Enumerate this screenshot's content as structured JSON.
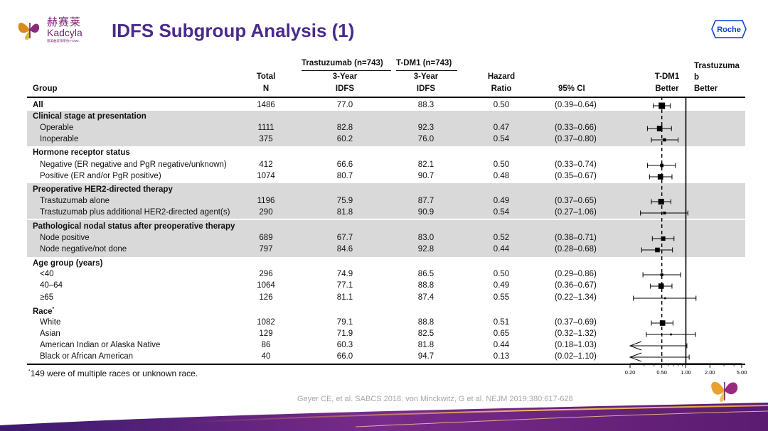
{
  "brand": {
    "cn": "赫赛莱",
    "en": "Kadcyla",
    "sub": "恩美曲妥珠单抗T-DM1",
    "partner": "Roche"
  },
  "title": "IDFS Subgroup Analysis (1)",
  "headers": {
    "group": "Group",
    "total": "Total",
    "n": "N",
    "arm1": "Trastuzumab (n=743)",
    "arm2": "T-DM1 (n=743)",
    "idfs_top": "3-Year",
    "idfs_bottom": "IDFS",
    "hazard_top": "Hazard",
    "hazard_bottom": "Ratio",
    "ci": "95% CI",
    "tdm1_top": "T-DM1",
    "tdm1_bottom": "Better",
    "trast_1": "Trastuzuma",
    "trast_2": "b",
    "trast_3": "Better"
  },
  "sections": {
    "clinical": "Clinical stage at presentation",
    "hormone": "Hormone receptor status",
    "preop": "Preoperative HER2-directed therapy",
    "nodal": "Pathological nodal status after preoperative therapy",
    "age": "Age group (years)",
    "race": "Race",
    "race_mark": "*"
  },
  "rows": [
    {
      "label": "All",
      "n": "1486",
      "t": "77.0",
      "d": "88.3",
      "hr": "0.50",
      "ci": "(0.39–0.64)"
    },
    {
      "label": "Operable",
      "n": "1111",
      "t": "82.8",
      "d": "92.3",
      "hr": "0.47",
      "ci": "(0.33–0.66)"
    },
    {
      "label": "Inoperable",
      "n": "375",
      "t": "60.2",
      "d": "76.0",
      "hr": "0.54",
      "ci": "(0.37–0.80)"
    },
    {
      "label": "Negative (ER negative and PgR negative/unknown)",
      "n": "412",
      "t": "66.6",
      "d": "82.1",
      "hr": "0.50",
      "ci": "(0.33–0.74)"
    },
    {
      "label": "Positive (ER and/or PgR positive)",
      "n": "1074",
      "t": "80.7",
      "d": "90.7",
      "hr": "0.48",
      "ci": "(0.35–0.67)"
    },
    {
      "label": "Trastuzumab alone",
      "n": "1196",
      "t": "75.9",
      "d": "87.7",
      "hr": "0.49",
      "ci": "(0.37–0.65)"
    },
    {
      "label": "Trastuzumab plus additional HER2-directed agent(s)",
      "n": "290",
      "t": "81.8",
      "d": "90.9",
      "hr": "0.54",
      "ci": "(0.27–1.06)"
    },
    {
      "label": "Node positive",
      "n": "689",
      "t": "67.7",
      "d": "83.0",
      "hr": "0.52",
      "ci": "(0.38–0.71)"
    },
    {
      "label": "Node negative/not done",
      "n": "797",
      "t": "84.6",
      "d": "92.8",
      "hr": "0.44",
      "ci": "(0.28–0.68)"
    },
    {
      "label": "<40",
      "n": "296",
      "t": "74.9",
      "d": "86.5",
      "hr": "0.50",
      "ci": "(0.29–0.86)"
    },
    {
      "label": "40–64",
      "n": "1064",
      "t": "77.1",
      "d": "88.8",
      "hr": "0.49",
      "ci": "(0.36–0.67)"
    },
    {
      "label": "≥65",
      "n": "126",
      "t": "81.1",
      "d": "87.4",
      "hr": "0.55",
      "ci": "(0.22–1.34)"
    },
    {
      "label": "White",
      "n": "1082",
      "t": "79.1",
      "d": "88.8",
      "hr": "0.51",
      "ci": "(0.37–0.69)"
    },
    {
      "label": "Asian",
      "n": "129",
      "t": "71.9",
      "d": "82.5",
      "hr": "0.65",
      "ci": "(0.32–1.32)"
    },
    {
      "label": "American Indian or Alaska Native",
      "n": "86",
      "t": "60.3",
      "d": "81.8",
      "hr": "0.44",
      "ci": "(0.18–1.03)"
    },
    {
      "label": "Black or African American",
      "n": "40",
      "t": "66.0",
      "d": "94.7",
      "hr": "0.13",
      "ci": "(0.02–1.10)"
    }
  ],
  "axis_ticks": [
    "0.20",
    "0.50",
    "1.00",
    "2.00",
    "5.00"
  ],
  "footnote_mark": "*",
  "footnote": "149 were of multiple races or unknown race.",
  "citation": "Geyer CE, et al.  SABCS 2018. von Minckwitz, G et al. NEJM 2019;380:617-628",
  "chart_data": {
    "type": "forest",
    "title": "IDFS Subgroup Analysis (1)",
    "xlabel": "Hazard Ratio",
    "xscale": "log",
    "xlim": [
      0.2,
      5.0
    ],
    "reference_line": 1.0,
    "overall_hr_line": 0.5,
    "categories": [
      "All",
      "Operable",
      "Inoperable",
      "Negative (ER negative and PgR negative/unknown)",
      "Positive (ER and/or PgR positive)",
      "Trastuzumab alone",
      "Trastuzumab plus additional HER2-directed agent(s)",
      "Node positive",
      "Node negative/not done",
      "<40",
      "40–64",
      "≥65",
      "White",
      "Asian",
      "American Indian or Alaska Native",
      "Black or African American"
    ],
    "hr": [
      0.5,
      0.47,
      0.54,
      0.5,
      0.48,
      0.49,
      0.54,
      0.52,
      0.44,
      0.5,
      0.49,
      0.55,
      0.51,
      0.65,
      0.44,
      0.13
    ],
    "lower": [
      0.39,
      0.33,
      0.37,
      0.33,
      0.35,
      0.37,
      0.27,
      0.38,
      0.28,
      0.29,
      0.36,
      0.22,
      0.37,
      0.32,
      0.18,
      0.02
    ],
    "upper": [
      0.64,
      0.66,
      0.8,
      0.74,
      0.67,
      0.65,
      1.06,
      0.71,
      0.68,
      0.86,
      0.67,
      1.34,
      0.69,
      1.32,
      1.03,
      1.1
    ],
    "n": [
      1486,
      1111,
      375,
      412,
      1074,
      1196,
      290,
      689,
      797,
      296,
      1064,
      126,
      1082,
      129,
      86,
      40
    ]
  },
  "colors": {
    "title": "#4b2a8c",
    "band": "#d9d9d9",
    "brand": "#7a1f6e",
    "roche": "#0b41cd",
    "citation": "#a6a6a6"
  }
}
